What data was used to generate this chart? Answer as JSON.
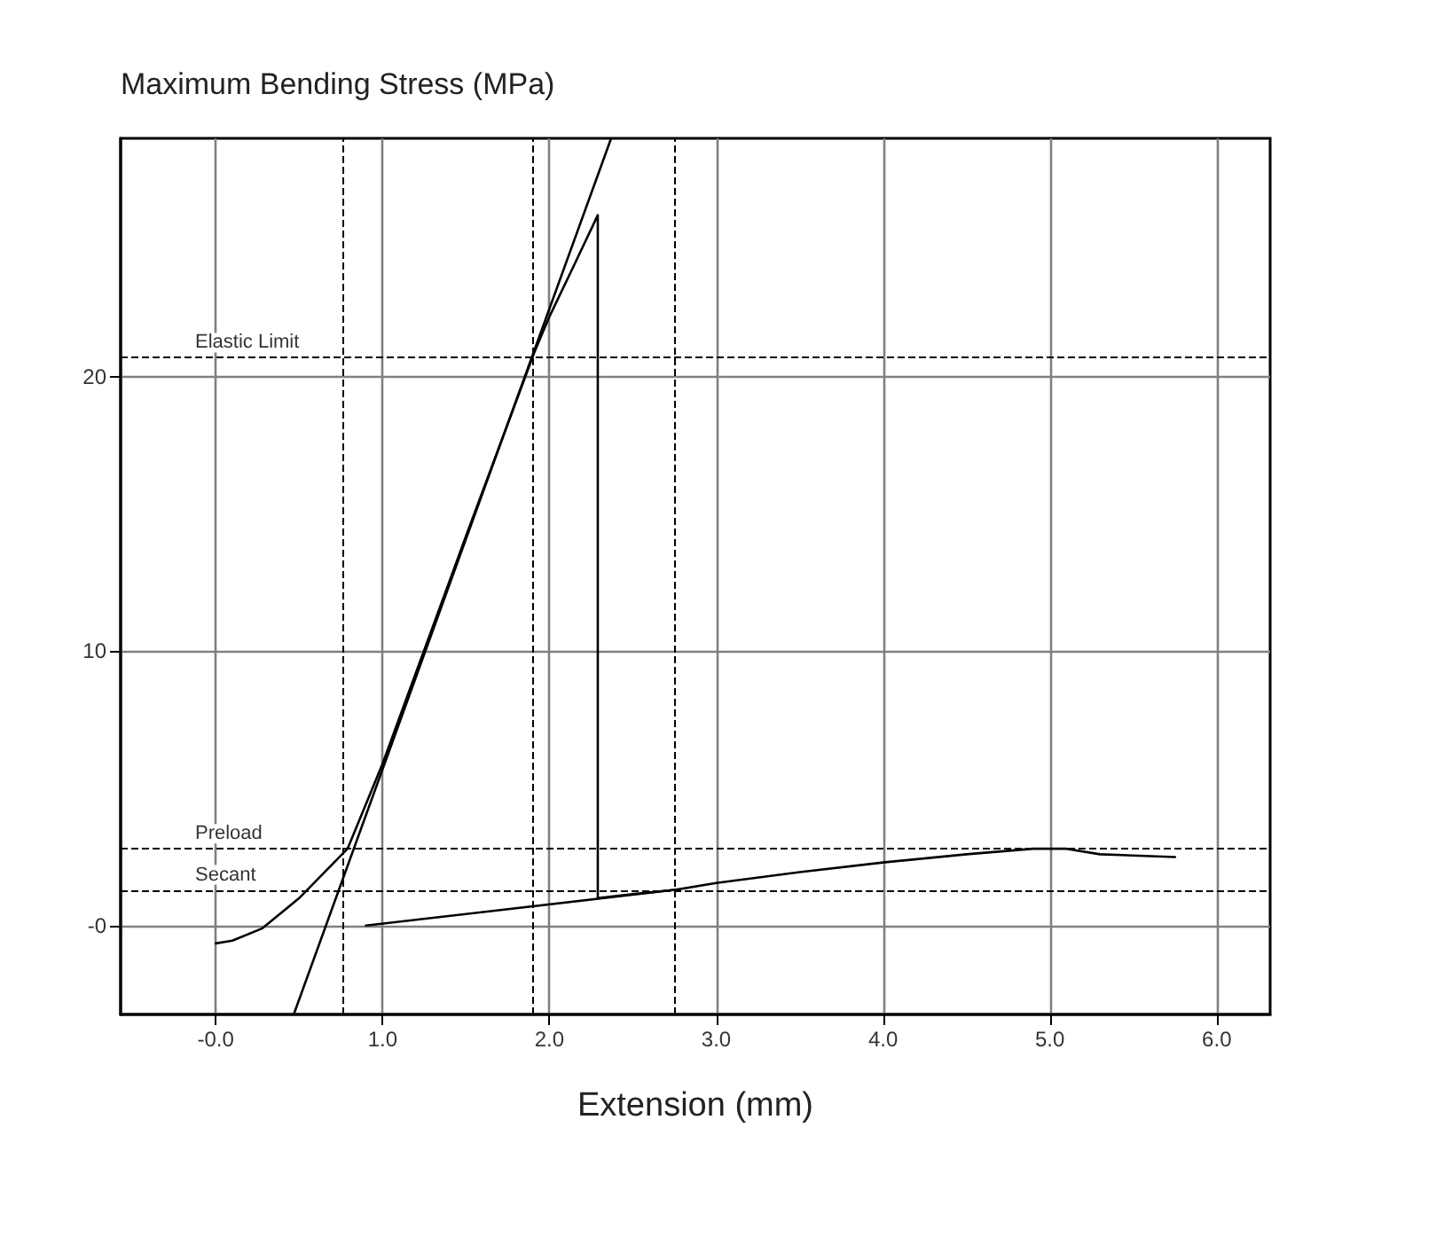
{
  "chart_data": {
    "type": "line",
    "ylabel": "Maximum Bending Stress (MPa)",
    "xlabel": "Extension (mm)",
    "series": [
      {
        "color": "#000000",
        "x": [
          0,
          0.1,
          0.28,
          0.5,
          0.79,
          1.0,
          1.5,
          1.91,
          2.0,
          2.15,
          2.29,
          2.29,
          2.5,
          2.75,
          3.0,
          3.5,
          4.0,
          4.5,
          4.9,
          5.1,
          5.3,
          5.75
        ],
        "values": [
          -0.65,
          -0.55,
          -0.1,
          1.0,
          2.8,
          5.9,
          14.2,
          20.9,
          22.2,
          24.1,
          25.9,
          1.0,
          1.15,
          1.3,
          1.55,
          1.95,
          2.3,
          2.6,
          2.8,
          2.8,
          2.6,
          2.5
        ]
      },
      {
        "color": "#000000",
        "x": [
          0.47,
          2.37
        ],
        "values": [
          -3.2,
          28.7
        ]
      },
      {
        "color": "#000000",
        "x": [
          0.9,
          2.75
        ],
        "values": [
          0,
          1.3
        ]
      }
    ],
    "xlim": [
      -0.57,
      6.32
    ],
    "ylim": [
      -3.24,
      28.7
    ],
    "xticks": [
      {
        "value": 0,
        "label": "-0.0"
      },
      {
        "value": 1,
        "label": "1.0"
      },
      {
        "value": 2,
        "label": "2.0"
      },
      {
        "value": 3,
        "label": "3.0"
      },
      {
        "value": 4,
        "label": "4.0"
      },
      {
        "value": 5,
        "label": "5.0"
      },
      {
        "value": 6,
        "label": "6.0"
      }
    ],
    "yticks": [
      {
        "value": 0,
        "label": "-0"
      },
      10,
      20
    ],
    "ref_lines": [
      {
        "axis": "y",
        "value": 20.7,
        "label": "Elastic Limit",
        "line_style": "dashed",
        "color": "#000000"
      },
      {
        "axis": "y",
        "value": 2.8,
        "label": "Preload",
        "line_style": "dashed",
        "color": "#000000"
      },
      {
        "axis": "y",
        "value": 1.3,
        "label": "Secant",
        "line_style": "dashed",
        "color": "#000000"
      },
      {
        "axis": "x",
        "value": 0.76,
        "label": null,
        "line_style": "dashed",
        "color": "#000000"
      },
      {
        "axis": "x",
        "value": 1.9,
        "label": null,
        "line_style": "dashed",
        "color": "#000000"
      },
      {
        "axis": "x",
        "value": 2.75,
        "label": null,
        "line_style": "dashed",
        "color": "#000000"
      }
    ],
    "grid": true,
    "marker": "none",
    "line_style": "solid"
  }
}
